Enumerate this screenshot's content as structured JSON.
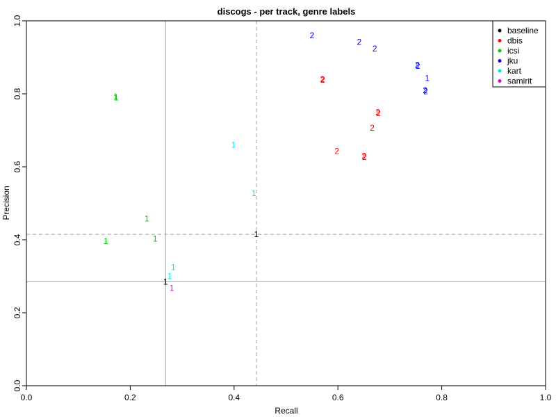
{
  "chart_data": {
    "type": "scatter",
    "title": "discogs - per track, genre labels",
    "xlabel": "Recall",
    "ylabel": "Precision",
    "xlim": [
      0,
      1
    ],
    "ylim": [
      0,
      1
    ],
    "x_ticks": [
      "0.0",
      "0.2",
      "0.4",
      "0.6",
      "0.8",
      "1.0"
    ],
    "y_ticks": [
      "0.0",
      "0.2",
      "0.4",
      "0.6",
      "0.8",
      "1.0"
    ],
    "legend_position": "top-right",
    "reference_lines": {
      "solid": {
        "x": 0.268,
        "y": 0.285
      },
      "dashed": {
        "x": 0.443,
        "y": 0.415
      }
    },
    "series": [
      {
        "name": "baseline",
        "color": "#000000",
        "points": [
          {
            "x": 0.268,
            "y": 0.285,
            "label": "1"
          },
          {
            "x": 0.443,
            "y": 0.415,
            "label": "1"
          }
        ]
      },
      {
        "name": "dbis",
        "color": "#ff0000",
        "points": [
          {
            "x": 0.57,
            "y": 0.84,
            "label": "2"
          },
          {
            "x": 0.571,
            "y": 0.838,
            "label": "2"
          },
          {
            "x": 0.677,
            "y": 0.75,
            "label": "2"
          },
          {
            "x": 0.678,
            "y": 0.747,
            "label": "2"
          },
          {
            "x": 0.666,
            "y": 0.707,
            "label": "2"
          },
          {
            "x": 0.598,
            "y": 0.643,
            "label": "2"
          },
          {
            "x": 0.65,
            "y": 0.63,
            "label": "2"
          },
          {
            "x": 0.651,
            "y": 0.627,
            "label": "2"
          }
        ]
      },
      {
        "name": "icsi",
        "color": "#00cc00",
        "points": [
          {
            "x": 0.172,
            "y": 0.792,
            "label": "1"
          },
          {
            "x": 0.173,
            "y": 0.79,
            "label": "1"
          },
          {
            "x": 0.232,
            "y": 0.458,
            "label": "1"
          },
          {
            "x": 0.248,
            "y": 0.403,
            "label": "1"
          },
          {
            "x": 0.153,
            "y": 0.396,
            "label": "1"
          }
        ]
      },
      {
        "name": "jku",
        "color": "#0000ff",
        "points": [
          {
            "x": 0.55,
            "y": 0.96,
            "label": "2"
          },
          {
            "x": 0.641,
            "y": 0.942,
            "label": "2"
          },
          {
            "x": 0.671,
            "y": 0.924,
            "label": "2"
          },
          {
            "x": 0.753,
            "y": 0.879,
            "label": "2"
          },
          {
            "x": 0.754,
            "y": 0.876,
            "label": "2"
          },
          {
            "x": 0.772,
            "y": 0.843,
            "label": "1"
          },
          {
            "x": 0.768,
            "y": 0.81,
            "label": "2"
          },
          {
            "x": 0.769,
            "y": 0.807,
            "label": "2"
          }
        ]
      },
      {
        "name": "kart",
        "color": "#00e5e5",
        "points": [
          {
            "x": 0.399,
            "y": 0.66,
            "label": "1"
          },
          {
            "x": 0.438,
            "y": 0.528,
            "label": "1"
          },
          {
            "x": 0.283,
            "y": 0.325,
            "label": "1"
          },
          {
            "x": 0.276,
            "y": 0.3,
            "label": "1"
          }
        ]
      },
      {
        "name": "samirit",
        "color": "#dd00dd",
        "points": [
          {
            "x": 0.28,
            "y": 0.268,
            "label": "1"
          }
        ]
      }
    ]
  }
}
